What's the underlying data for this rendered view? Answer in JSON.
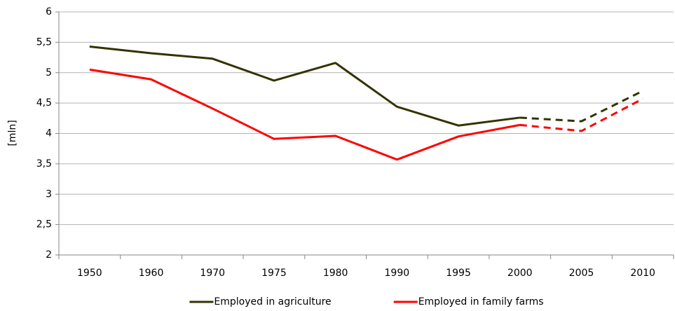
{
  "chart_data": {
    "type": "line",
    "y_label": "[mln]",
    "categories": [
      "1950",
      "1960",
      "1970",
      "1975",
      "1980",
      "1990",
      "1995",
      "2000",
      "2005",
      "2010"
    ],
    "series": [
      {
        "name": "Employed in agriculture",
        "color": "#333300",
        "values": [
          5.43,
          5.32,
          5.23,
          4.87,
          5.16,
          4.44,
          4.13,
          4.26,
          4.2,
          4.7
        ]
      },
      {
        "name": "Employed in family farms",
        "color": "#ff0000",
        "values": [
          5.05,
          4.89,
          4.41,
          3.91,
          3.96,
          3.57,
          3.95,
          4.14,
          4.04,
          4.57
        ]
      }
    ],
    "dashed_from": "2000",
    "ylim": [
      2,
      6
    ],
    "yticks": [
      2,
      {
        "value": 2.5,
        "label": "2,5"
      },
      3,
      {
        "value": 3.5,
        "label": "3,5"
      },
      4,
      {
        "value": 4.5,
        "label": "4,5"
      },
      5,
      {
        "value": 5.5,
        "label": "5,5"
      },
      6
    ],
    "grid": true,
    "legend": "bottom"
  }
}
